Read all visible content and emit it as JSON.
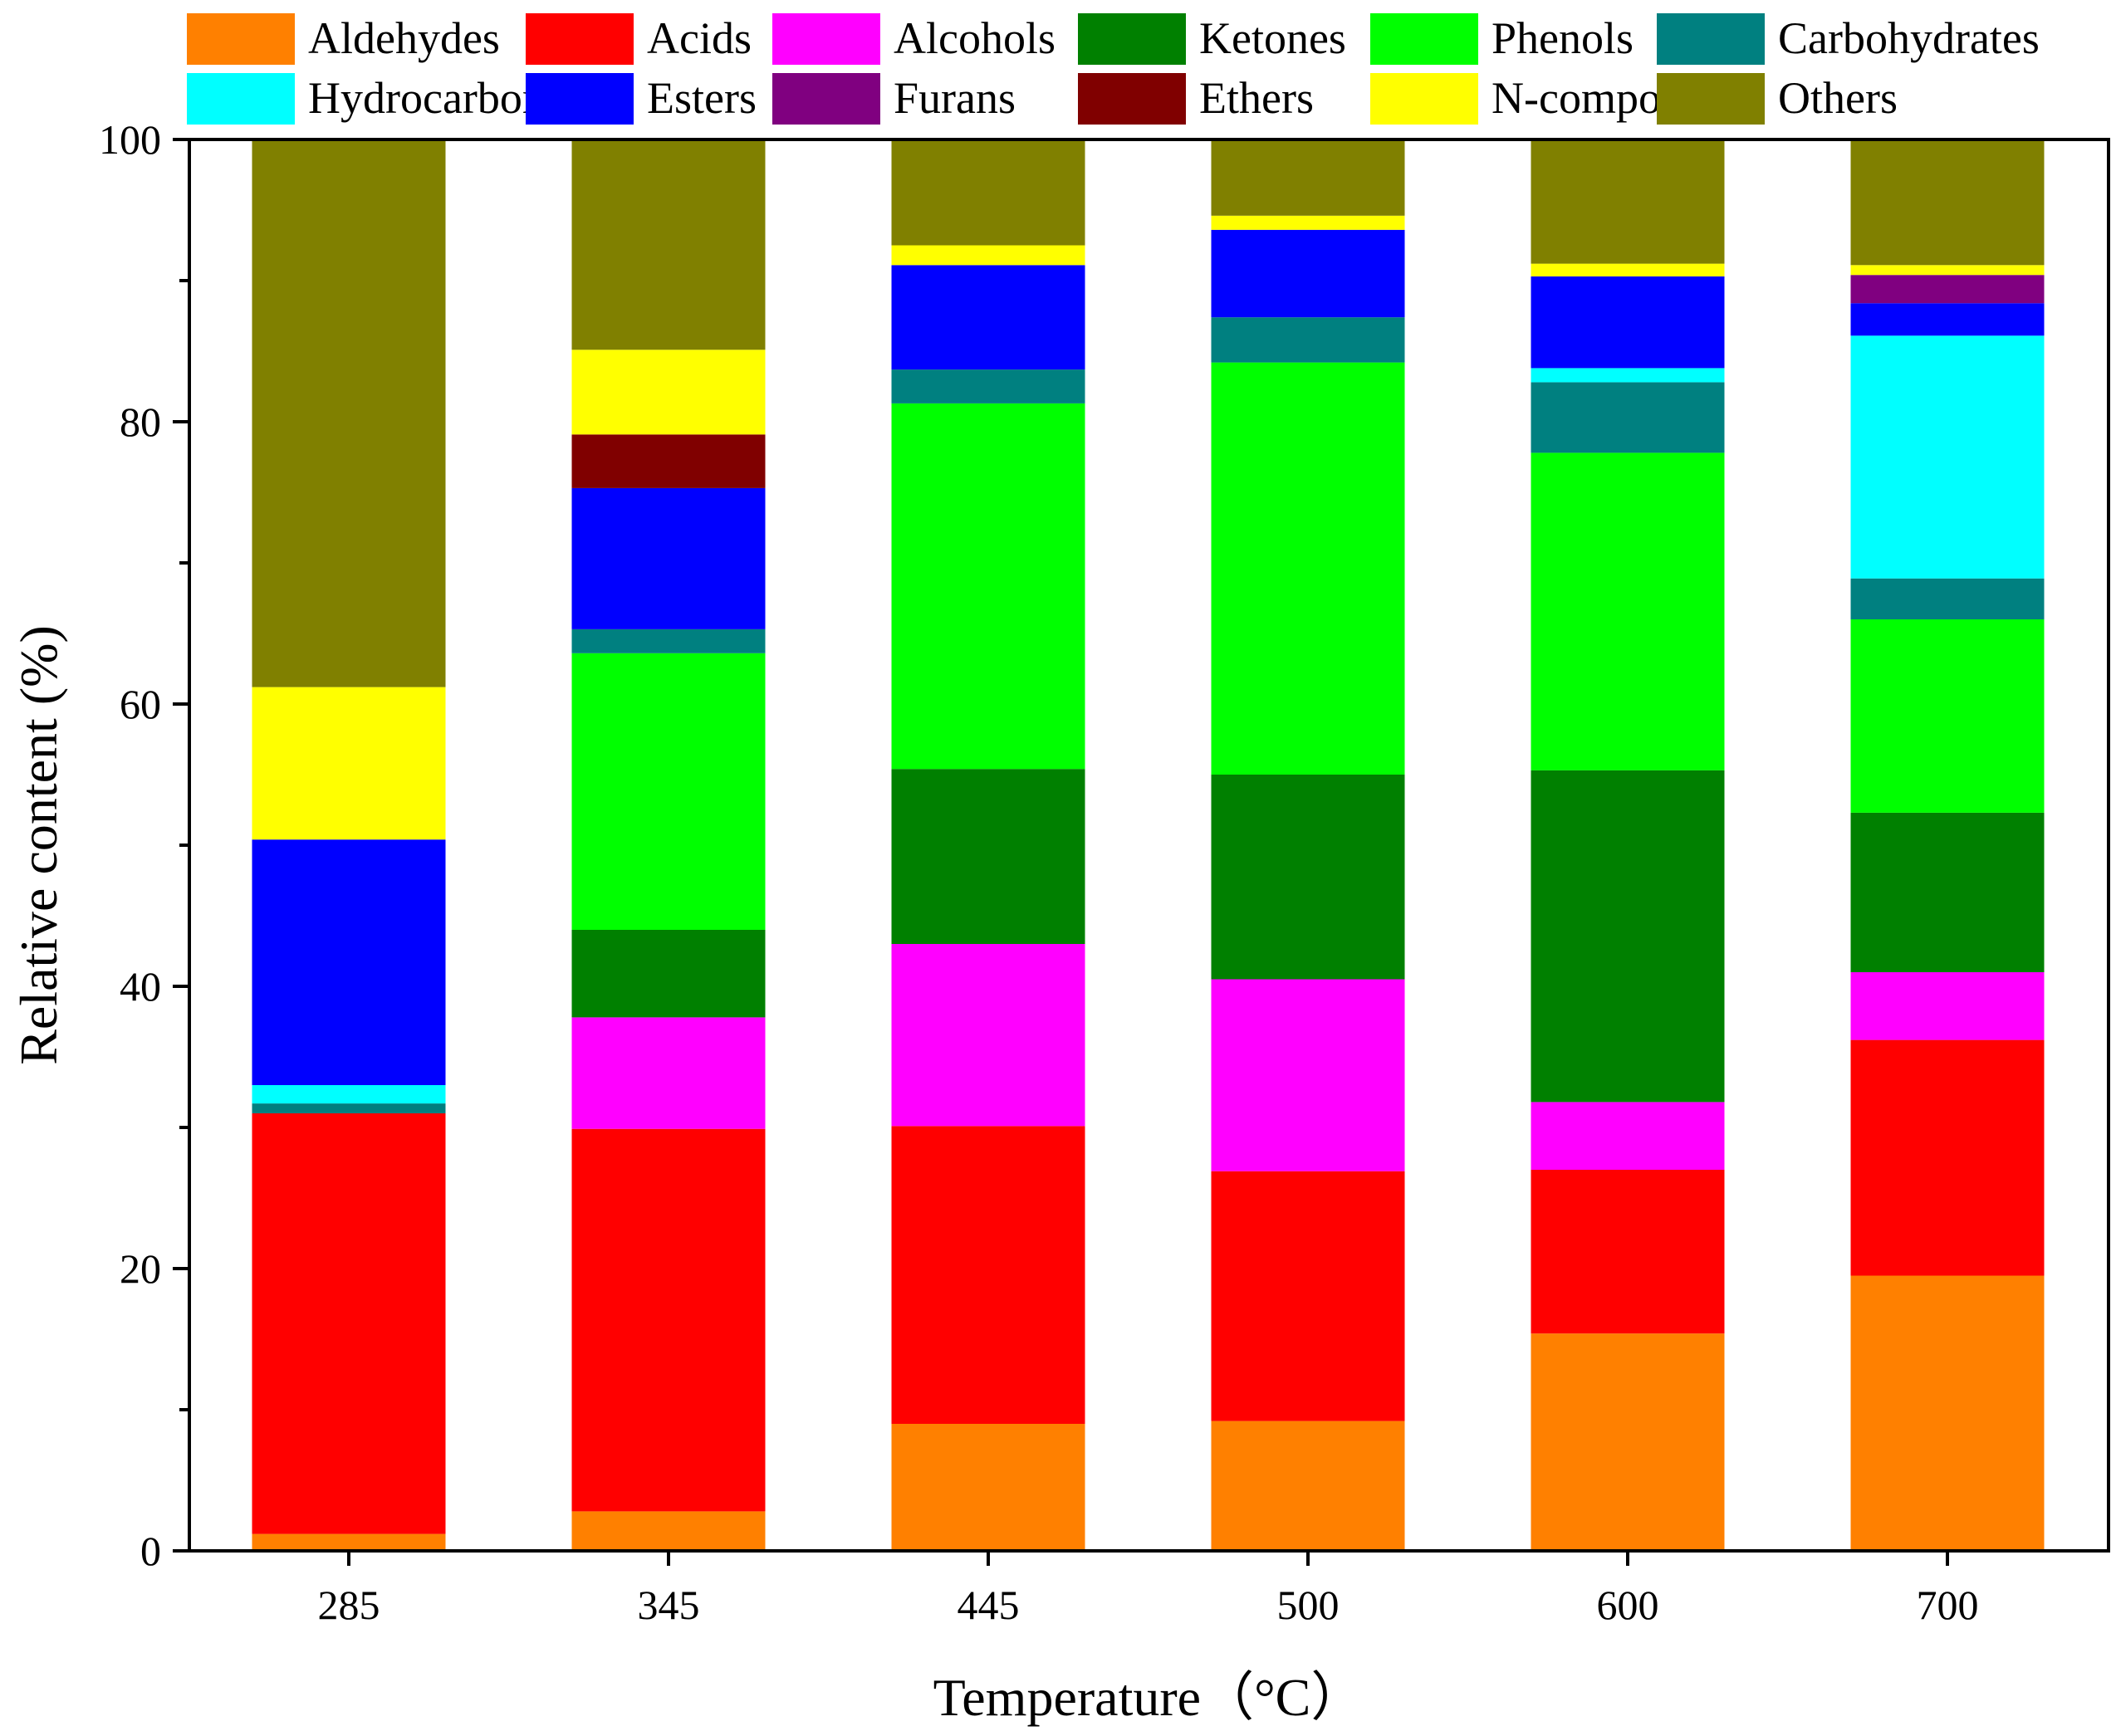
{
  "chart_data": {
    "type": "bar",
    "stacked": true,
    "title": "",
    "xlabel": "Temperature（°C）",
    "ylabel": "Relative content (%)",
    "ylim": [
      0,
      100
    ],
    "yticks": [
      0,
      20,
      40,
      60,
      80,
      100
    ],
    "categories": [
      "285",
      "345",
      "445",
      "500",
      "600",
      "700"
    ],
    "legend_position": "top",
    "series": [
      {
        "name": "Aldehydes",
        "color": "#FF8000",
        "values": [
          1.2,
          2.8,
          9.0,
          9.2,
          15.4,
          19.5
        ]
      },
      {
        "name": "Acids",
        "color": "#FF0000",
        "values": [
          29.8,
          27.1,
          21.1,
          17.7,
          11.6,
          16.7
        ]
      },
      {
        "name": "Alcohols",
        "color": "#FF00FF",
        "values": [
          0,
          7.9,
          12.9,
          13.6,
          4.8,
          4.8
        ]
      },
      {
        "name": "Ketones",
        "color": "#008000",
        "values": [
          0,
          6.2,
          12.4,
          14.5,
          23.5,
          11.3
        ]
      },
      {
        "name": "Phenols",
        "color": "#00FF00",
        "values": [
          0,
          19.6,
          25.9,
          29.2,
          22.5,
          13.7
        ]
      },
      {
        "name": "Carbohydrates",
        "color": "#008080",
        "values": [
          0.7,
          1.7,
          2.4,
          3.2,
          5.0,
          2.9
        ]
      },
      {
        "name": "Hydrocarbons",
        "color": "#00FFFF",
        "values": [
          1.3,
          0,
          0,
          0,
          1.0,
          17.2
        ]
      },
      {
        "name": "Esters",
        "color": "#0000FF",
        "values": [
          17.4,
          10.0,
          7.4,
          6.2,
          6.5,
          2.3
        ]
      },
      {
        "name": "Furans",
        "color": "#800080",
        "values": [
          0,
          0,
          0,
          0,
          0,
          2.0
        ]
      },
      {
        "name": "Ethers",
        "color": "#800000",
        "values": [
          0,
          3.8,
          0,
          0,
          0,
          0
        ]
      },
      {
        "name": "N-compounds",
        "color": "#FFFF00",
        "values": [
          10.8,
          6.0,
          1.4,
          1.0,
          0.9,
          0.7
        ]
      },
      {
        "name": "Others",
        "color": "#808000",
        "values": [
          38.8,
          14.9,
          7.5,
          5.4,
          8.8,
          8.9
        ]
      }
    ]
  }
}
